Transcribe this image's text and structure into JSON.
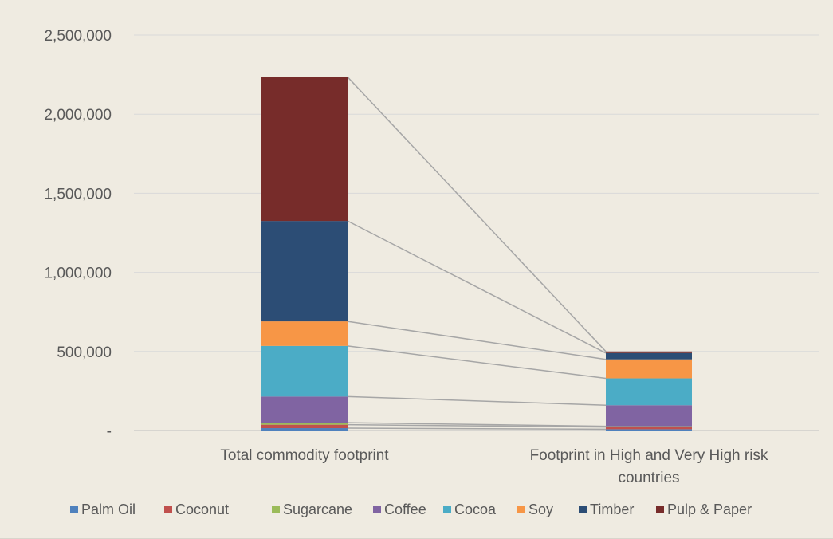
{
  "chart_data": {
    "type": "bar",
    "stacked": true,
    "categories": [
      [
        "Total commodity footprint"
      ],
      [
        "Footprint in High and Very High risk",
        "countries"
      ]
    ],
    "ylim": [
      0,
      2500000
    ],
    "yticks": [
      0,
      500000,
      1000000,
      1500000,
      2000000,
      2500000
    ],
    "ytick_labels": [
      "-",
      "500,000",
      "1,000,000",
      "1,500,000",
      "2,000,000",
      "2,500,000"
    ],
    "grid": true,
    "legend_position": "bottom",
    "connector_lines": true,
    "series": [
      {
        "name": "Palm Oil",
        "color": "#4F81BD",
        "values": [
          15000,
          8000
        ]
      },
      {
        "name": "Coconut",
        "color": "#C0504D",
        "values": [
          22000,
          14000
        ]
      },
      {
        "name": "Sugarcane",
        "color": "#9BBB59",
        "values": [
          13000,
          5000
        ]
      },
      {
        "name": "Coffee",
        "color": "#8064A2",
        "values": [
          165000,
          133000
        ]
      },
      {
        "name": "Cocoa",
        "color": "#4BACC6",
        "values": [
          320000,
          170000
        ]
      },
      {
        "name": "Soy",
        "color": "#F79646",
        "values": [
          155000,
          120000
        ]
      },
      {
        "name": "Timber",
        "color": "#2C4D75",
        "values": [
          635000,
          40000
        ]
      },
      {
        "name": "Pulp & Paper",
        "color": "#772C2A",
        "values": [
          910000,
          10000
        ]
      }
    ],
    "connector_color": "#A6A6A6"
  }
}
